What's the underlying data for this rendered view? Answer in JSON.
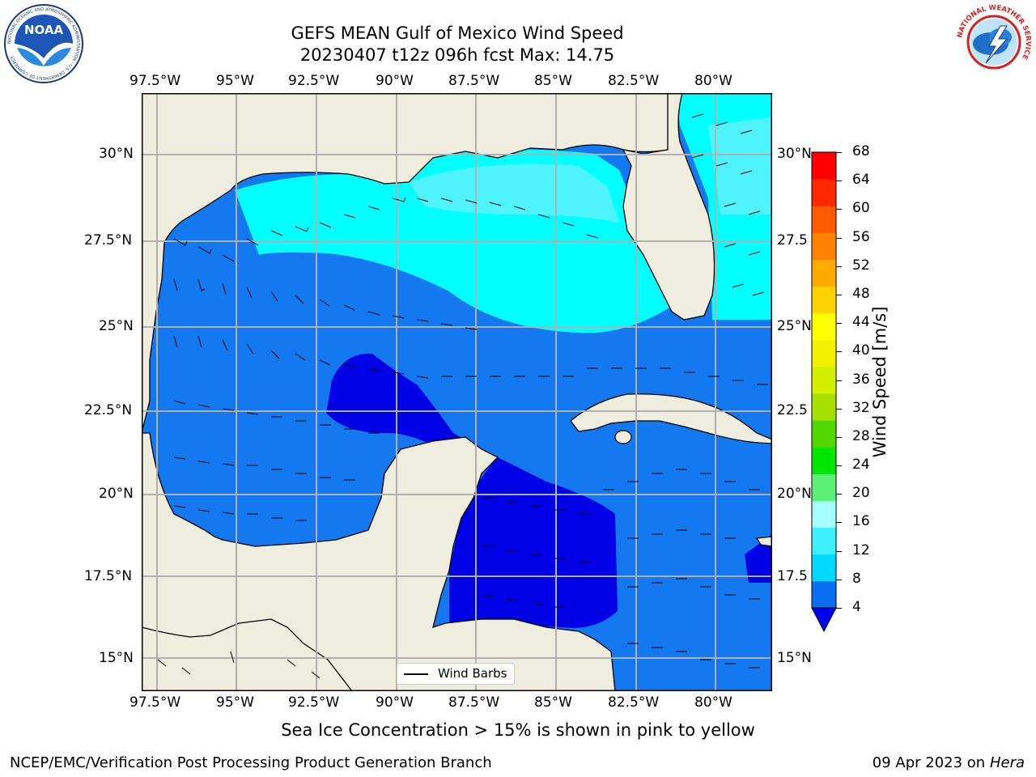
{
  "title": {
    "line1": "GEFS MEAN Gulf of Mexico Wind Speed",
    "line2": "20230407 t12z 096h fcst   Max: 14.75"
  },
  "logos": {
    "noaa_text": "NOAA",
    "noaa_ring": "NATIONAL OCEANIC AND ATMOSPHERIC ADMINISTRATION · U.S. DEPARTMENT OF COMMERCE",
    "nws_ring": "NATIONAL WEATHER SERVICE"
  },
  "axes": {
    "lon_labels": [
      "97.5°W",
      "95°W",
      "92.5°W",
      "90°W",
      "87.5°W",
      "85°W",
      "82.5°W",
      "80°W"
    ],
    "lat_labels_left": [
      "30°N",
      "27.5°N",
      "25°N",
      "22.5°N",
      "20°N",
      "17.5°N",
      "15°N"
    ],
    "lat_labels_right": [
      "30°N",
      "27.5",
      "25°N",
      "22.5",
      "20°N",
      "17.5",
      "15°N"
    ]
  },
  "legend": {
    "label": "Wind Barbs"
  },
  "colorbar": {
    "label": "Wind Speed [m/s]",
    "ticks": [
      "4",
      "8",
      "12",
      "16",
      "20",
      "24",
      "28",
      "32",
      "36",
      "40",
      "44",
      "48",
      "52",
      "56",
      "60",
      "64",
      "68"
    ],
    "colors": [
      "#0a6cf0",
      "#00d8ff",
      "#3cf0ff",
      "#a6ffff",
      "#5cf078",
      "#00e600",
      "#52d600",
      "#a6e000",
      "#d2f000",
      "#f0f000",
      "#ffff00",
      "#ffd200",
      "#ffaa00",
      "#ff8200",
      "#ff5a00",
      "#ff2800",
      "#ff0000"
    ],
    "under_color": "#0000f0"
  },
  "map_colors": {
    "land": "#efedde",
    "speed_4_8": "#1478f0",
    "speed_below_4": "#0000e6",
    "speed_8_12": "#00ffff",
    "speed_12_16": "#50f4ff"
  },
  "subtitle": "Sea Ice Concentration > 15% is shown in pink to yellow",
  "footer": {
    "left": "NCEP/EMC/Verification Post Processing Product Generation Branch",
    "right_prefix": "09 Apr 2023 on ",
    "right_host": "Hera"
  }
}
